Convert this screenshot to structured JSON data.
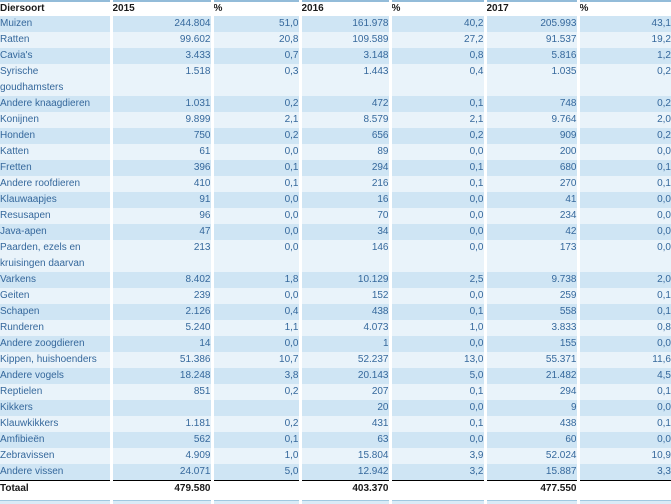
{
  "colors": {
    "row_dark": "#cfe5f4",
    "row_light": "#e9f3fa",
    "data_text_blue": "#35689c",
    "header_text": "#1a1a1a",
    "table_top_border": "#93bcd9"
  },
  "table": {
    "columns": [
      "Diersoort",
      "2015",
      "%",
      "2016",
      "%",
      "2017",
      "%"
    ],
    "rows": [
      {
        "name": "Muizen",
        "v": [
          "244.804",
          "51,0",
          "161.978",
          "40,2",
          "205.993",
          "43,1"
        ]
      },
      {
        "name": "Ratten",
        "v": [
          "99.602",
          "20,8",
          "109.589",
          "27,2",
          "91.537",
          "19,2"
        ]
      },
      {
        "name": "Cavia's",
        "v": [
          "3.433",
          "0,7",
          "3.148",
          "0,8",
          "5.816",
          "1,2"
        ]
      },
      {
        "name": "Syrische goudhamsters",
        "lines": [
          "Syrische",
          "goudhamsters"
        ],
        "v": [
          "1.518",
          "0,3",
          "1.443",
          "0,4",
          "1.035",
          "0,2"
        ]
      },
      {
        "name": "Andere knaagdieren",
        "v": [
          "1.031",
          "0,2",
          "472",
          "0,1",
          "748",
          "0,2"
        ]
      },
      {
        "name": "Konijnen",
        "v": [
          "9.899",
          "2,1",
          "8.579",
          "2,1",
          "9.764",
          "2,0"
        ]
      },
      {
        "name": "Honden",
        "v": [
          "750",
          "0,2",
          "656",
          "0,2",
          "909",
          "0,2"
        ]
      },
      {
        "name": "Katten",
        "v": [
          "61",
          "0,0",
          "89",
          "0,0",
          "200",
          "0,0"
        ]
      },
      {
        "name": "Fretten",
        "v": [
          "396",
          "0,1",
          "294",
          "0,1",
          "680",
          "0,1"
        ]
      },
      {
        "name": "Andere roofdieren",
        "v": [
          "410",
          "0,1",
          "216",
          "0,1",
          "270",
          "0,1"
        ]
      },
      {
        "name": "Klauwaapjes",
        "v": [
          "91",
          "0,0",
          "16",
          "0,0",
          "41",
          "0,0"
        ]
      },
      {
        "name": "Resusapen",
        "v": [
          "96",
          "0,0",
          "70",
          "0,0",
          "234",
          "0,0"
        ]
      },
      {
        "name": "Java-apen",
        "v": [
          "47",
          "0,0",
          "34",
          "0,0",
          "42",
          "0,0"
        ]
      },
      {
        "name": "Paarden, ezels en kruisingen daarvan",
        "lines": [
          "Paarden, ezels en",
          "kruisingen daarvan"
        ],
        "v": [
          "213",
          "0,0",
          "146",
          "0,0",
          "173",
          "0,0"
        ]
      },
      {
        "name": "Varkens",
        "v": [
          "8.402",
          "1,8",
          "10.129",
          "2,5",
          "9.738",
          "2,0"
        ]
      },
      {
        "name": "Geiten",
        "v": [
          "239",
          "0,0",
          "152",
          "0,0",
          "259",
          "0,1"
        ]
      },
      {
        "name": "Schapen",
        "v": [
          "2.126",
          "0,4",
          "438",
          "0,1",
          "558",
          "0,1"
        ]
      },
      {
        "name": "Runderen",
        "v": [
          "5.240",
          "1,1",
          "4.073",
          "1,0",
          "3.833",
          "0,8"
        ]
      },
      {
        "name": "Andere zoogdieren",
        "v": [
          "14",
          "0,0",
          "1",
          "0,0",
          "155",
          "0,0"
        ]
      },
      {
        "name": "Kippen, huishoenders",
        "v": [
          "51.386",
          "10,7",
          "52.237",
          "13,0",
          "55.371",
          "11,6"
        ]
      },
      {
        "name": "Andere vogels",
        "v": [
          "18.248",
          "3,8",
          "20.143",
          "5,0",
          "21.482",
          "4,5"
        ]
      },
      {
        "name": "Reptielen",
        "v": [
          "851",
          "0,2",
          "207",
          "0,1",
          "294",
          "0,1"
        ]
      },
      {
        "name": "Kikkers",
        "v": [
          "",
          "",
          "20",
          "0,0",
          "9",
          "0,0"
        ]
      },
      {
        "name": "Klauwkikkers",
        "v": [
          "1.181",
          "0,2",
          "431",
          "0,1",
          "438",
          "0,1"
        ]
      },
      {
        "name": "Amfibieën",
        "v": [
          "562",
          "0,1",
          "63",
          "0,0",
          "60",
          "0,0"
        ]
      },
      {
        "name": "Zebravissen",
        "v": [
          "4.909",
          "1,0",
          "15.804",
          "3,9",
          "52.024",
          "10,9"
        ]
      },
      {
        "name": "Andere vissen",
        "v": [
          "24.071",
          "5,0",
          "12.942",
          "3,2",
          "15.887",
          "3,3"
        ]
      }
    ],
    "total": {
      "label": "Totaal",
      "v": [
        "479.580",
        "",
        "403.370",
        "",
        "477.550",
        ""
      ]
    }
  }
}
